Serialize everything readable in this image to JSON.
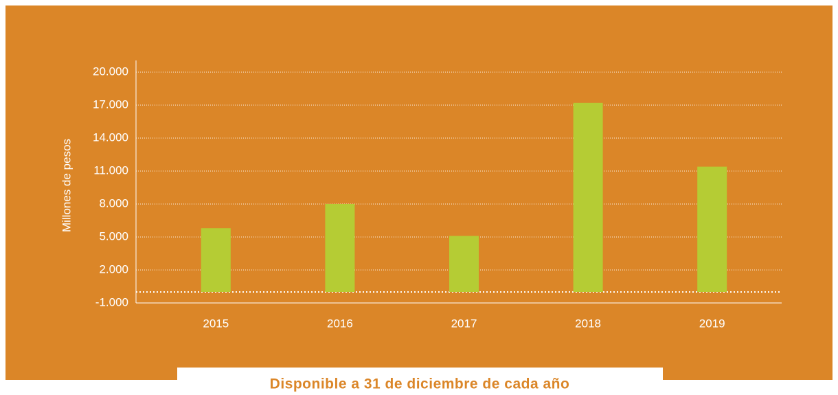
{
  "chart_data": {
    "type": "bar",
    "y_label": "Millones de pesos",
    "categories": [
      "2015",
      "2016",
      "2017",
      "2018",
      "2019"
    ],
    "values": [
      5800,
      8000,
      5100,
      17200,
      11400
    ],
    "color": "#b5cc34",
    "ylim": [
      -1000,
      20000
    ],
    "yticks": [
      {
        "value": -1000,
        "label": "-1.000"
      },
      {
        "value": 2000,
        "label": "2.000"
      },
      {
        "value": 5000,
        "label": "5.000"
      },
      {
        "value": 8000,
        "label": "8.000"
      },
      {
        "value": 11000,
        "label": "11.000"
      },
      {
        "value": 14000,
        "label": "14.000"
      },
      {
        "value": 17000,
        "label": "17.000"
      },
      {
        "value": 20000,
        "label": "20.000"
      }
    ],
    "grid": true,
    "caption": "Disponible a 31 de diciembre de cada año"
  }
}
